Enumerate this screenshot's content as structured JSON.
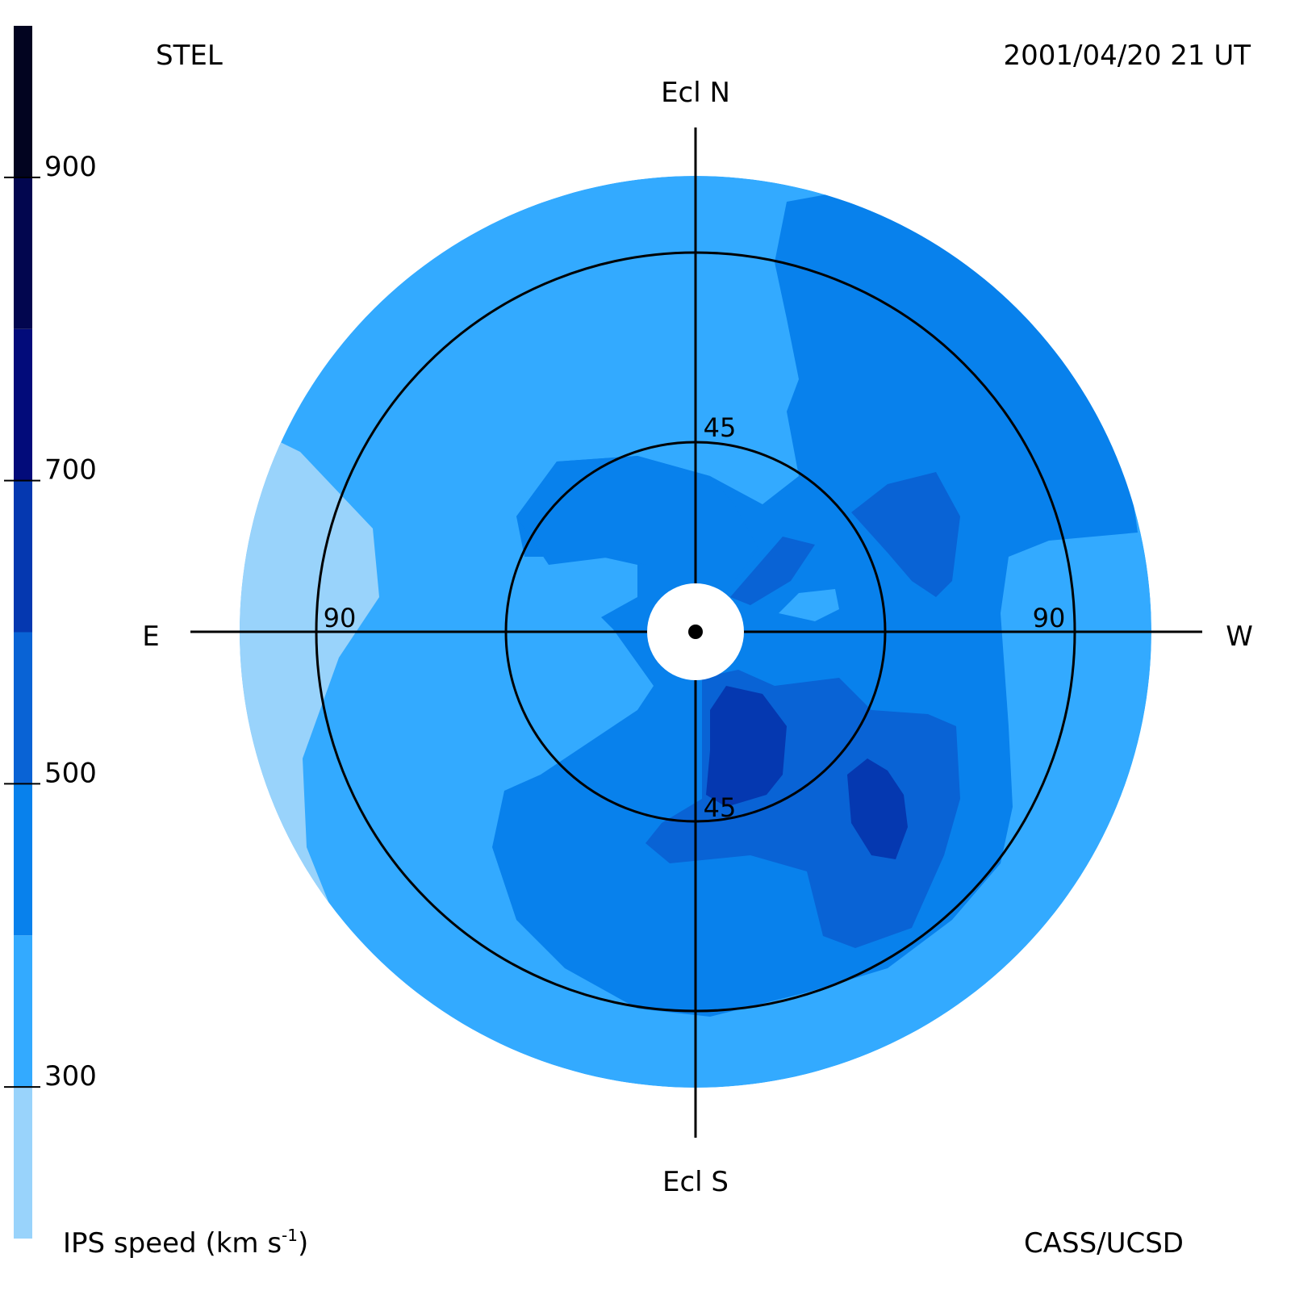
{
  "header": {
    "source": "STEL",
    "timestamp": "2001/04/20 21 UT"
  },
  "footer": {
    "quantity_label": "IPS speed (km s",
    "quantity_exponent": "-1",
    "quantity_close": ")",
    "credit": "CASS/UCSD"
  },
  "colorbar": {
    "ticks": [
      "900",
      "700",
      "500",
      "300"
    ],
    "tick_values": [
      900,
      700,
      500,
      300
    ],
    "range": [
      200,
      1000
    ],
    "bands": [
      {
        "from": 200,
        "to": 300,
        "color": "#99d3fb"
      },
      {
        "from": 300,
        "to": 400,
        "color": "#33aaff"
      },
      {
        "from": 400,
        "to": 500,
        "color": "#0881ec"
      },
      {
        "from": 500,
        "to": 600,
        "color": "#0963d5"
      },
      {
        "from": 600,
        "to": 700,
        "color": "#0538b0"
      },
      {
        "from": 700,
        "to": 800,
        "color": "#020b7a"
      },
      {
        "from": 800,
        "to": 900,
        "color": "#02064f"
      },
      {
        "from": 900,
        "to": 1000,
        "color": "#020420"
      }
    ]
  },
  "chart_data": {
    "type": "heatmap",
    "projection": "fisheye sky map centred on the Sun",
    "directions": {
      "north": "Ecl N",
      "south": "Ecl S",
      "east": "E",
      "west": "W"
    },
    "elongation_rings": [
      {
        "value": 45,
        "labels": [
          "45",
          "45"
        ]
      },
      {
        "value": 90,
        "labels": [
          "90",
          "90"
        ]
      }
    ],
    "colorbar_label": "IPS speed (km s-1)"
  }
}
